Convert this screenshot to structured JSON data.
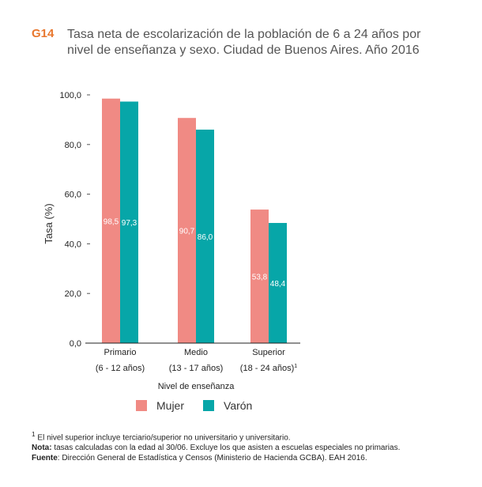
{
  "figure": {
    "number": "G14",
    "title_line1": "Tasa neta de escolarización de la población de 6 a 24 años por",
    "title_line2": "nivel de enseñanza y sexo. Ciudad de Buenos Aires. Año 2016"
  },
  "colors": {
    "mujer": "#f08a84",
    "varon": "#07a6a8",
    "accent": "#e8772e"
  },
  "chart_data": {
    "type": "bar",
    "ylabel": "Tasa (%)",
    "xlabel": "Nivel de enseñanza",
    "ylim": [
      0,
      100
    ],
    "yticks": [
      "0,0",
      "20,0",
      "40,0",
      "60,0",
      "80,0",
      "100,0"
    ],
    "ytick_values": [
      0,
      20,
      40,
      60,
      80,
      100
    ],
    "categories": [
      "Primario",
      "Medio",
      "Superior"
    ],
    "category_sublabels": [
      "(6 - 12 años)",
      "(13 - 17 años)",
      "(18 - 24 años)"
    ],
    "category_sublabel_note": [
      "",
      "",
      "1"
    ],
    "series": [
      {
        "name": "Mujer",
        "values": [
          98.5,
          90.7,
          53.8
        ],
        "labels": [
          "98,5",
          "90,7",
          "53,8"
        ]
      },
      {
        "name": "Varón",
        "values": [
          97.3,
          86.0,
          48.4
        ],
        "labels": [
          "97,3",
          "86,0",
          "48,4"
        ]
      }
    ],
    "legend_position": "bottom",
    "grid": false
  },
  "notes": {
    "footnote_mark": "1",
    "footnote_text": " El nivel superior incluye terciario/superior no universitario y universitario.",
    "nota_label": "Nota:",
    "nota_text": " tasas calculadas con la edad al 30/06. Excluye los que asisten a escuelas especiales no primarias.",
    "fuente_label": "Fuente",
    "fuente_text": ": Dirección General de Estadística y Censos (Ministerio de Hacienda GCBA). EAH 2016."
  }
}
